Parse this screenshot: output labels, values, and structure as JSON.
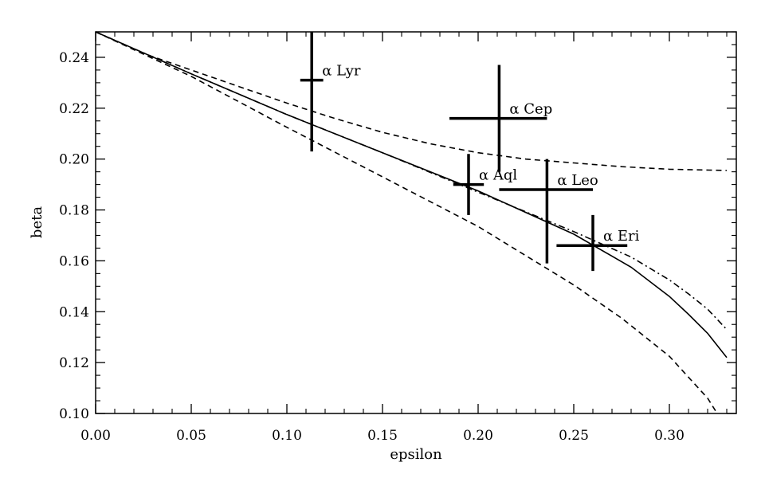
{
  "chart_data": {
    "type": "scatter",
    "title": "",
    "xlabel": "epsilon",
    "ylabel": "beta",
    "xlim": [
      0.0,
      0.335
    ],
    "ylim": [
      0.1,
      0.25
    ],
    "x_ticks": [
      0.0,
      0.05,
      0.1,
      0.15,
      0.2,
      0.25,
      0.3
    ],
    "x_tick_labels": [
      "0.00",
      "0.05",
      "0.10",
      "0.15",
      "0.20",
      "0.25",
      "0.30"
    ],
    "y_ticks": [
      0.1,
      0.12,
      0.14,
      0.16,
      0.18,
      0.2,
      0.22,
      0.24
    ],
    "y_tick_labels": [
      "0.10",
      "0.12",
      "0.14",
      "0.16",
      "0.18",
      "0.20",
      "0.22",
      "0.24"
    ],
    "grid": false,
    "legend": "none",
    "series": [
      {
        "style": "solid",
        "x": [
          0.0,
          0.05,
          0.1,
          0.15,
          0.2,
          0.25,
          0.28,
          0.3,
          0.31,
          0.32,
          0.33
        ],
        "y": [
          0.25,
          0.2335,
          0.2175,
          0.2025,
          0.1875,
          0.1705,
          0.1575,
          0.146,
          0.139,
          0.1315,
          0.122
        ]
      },
      {
        "style": "dash-dot",
        "x": [
          0.0,
          0.05,
          0.1,
          0.15,
          0.2,
          0.25,
          0.28,
          0.3,
          0.31,
          0.32,
          0.33
        ],
        "y": [
          0.25,
          0.2335,
          0.2175,
          0.2025,
          0.187,
          0.1715,
          0.1615,
          0.1525,
          0.147,
          0.141,
          0.133
        ]
      },
      {
        "style": "dashed",
        "x": [
          0.0,
          0.025,
          0.05,
          0.075,
          0.1,
          0.125,
          0.15,
          0.175,
          0.2,
          0.225,
          0.25,
          0.275,
          0.3,
          0.33
        ],
        "y": [
          0.25,
          0.2415,
          0.235,
          0.2285,
          0.222,
          0.216,
          0.2105,
          0.206,
          0.2025,
          0.2,
          0.1985,
          0.197,
          0.196,
          0.1955
        ]
      },
      {
        "style": "dashed",
        "x": [
          0.0,
          0.05,
          0.1,
          0.15,
          0.2,
          0.25,
          0.275,
          0.3,
          0.32,
          0.325
        ],
        "y": [
          0.25,
          0.2325,
          0.2125,
          0.193,
          0.1735,
          0.1505,
          0.1375,
          0.1225,
          0.106,
          0.1
        ]
      }
    ],
    "stars": [
      {
        "label": "α Lyr",
        "x": 0.113,
        "y": 0.231,
        "x_minus": 0.006,
        "x_plus": 0.006,
        "y_minus": 0.028,
        "y_plus": 0.019
      },
      {
        "label": "α Cep",
        "x": 0.211,
        "y": 0.216,
        "x_minus": 0.026,
        "x_plus": 0.025,
        "y_minus": 0.021,
        "y_plus": 0.021
      },
      {
        "label": "α Aql",
        "x": 0.195,
        "y": 0.19,
        "x_minus": 0.008,
        "x_plus": 0.008,
        "y_minus": 0.012,
        "y_plus": 0.012
      },
      {
        "label": "α Leo",
        "x": 0.236,
        "y": 0.188,
        "x_minus": 0.025,
        "x_plus": 0.024,
        "y_minus": 0.029,
        "y_plus": 0.012
      },
      {
        "label": "α Eri",
        "x": 0.26,
        "y": 0.166,
        "x_minus": 0.019,
        "x_plus": 0.018,
        "y_minus": 0.01,
        "y_plus": 0.012
      }
    ]
  }
}
